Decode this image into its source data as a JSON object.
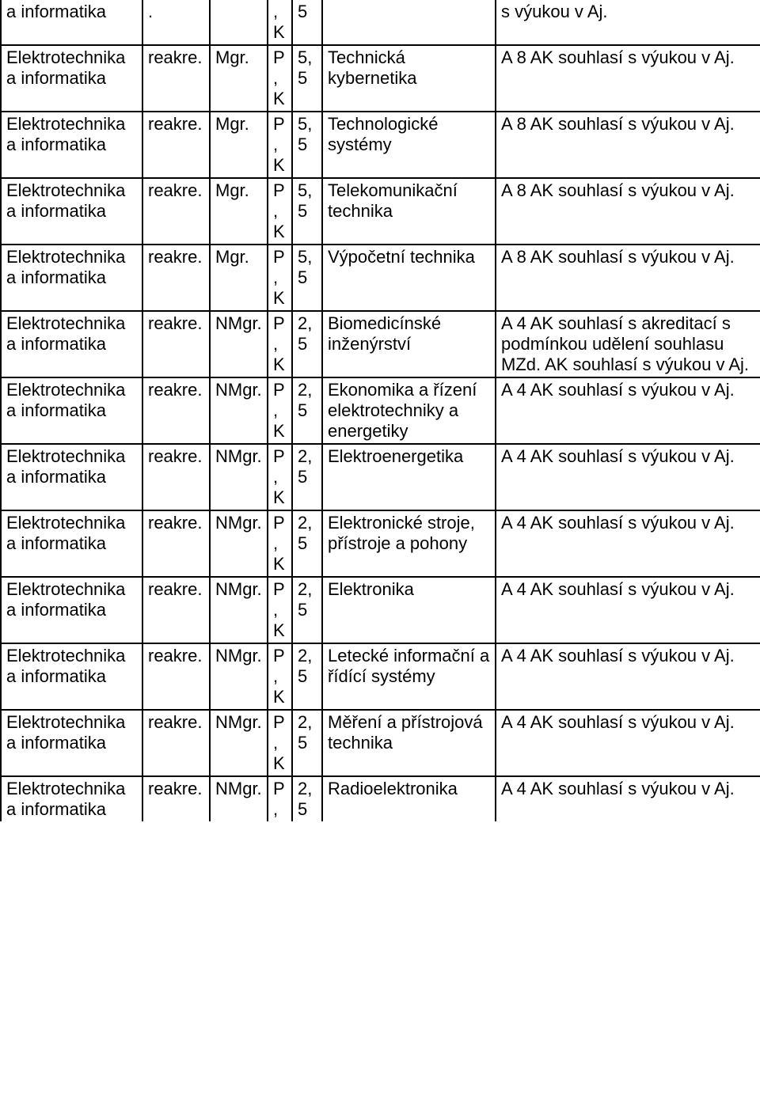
{
  "rows": [
    {
      "c1": "a informatika",
      "c2": ".",
      "c3": "",
      "c4": ", K",
      "c5": "5",
      "c6": "",
      "c7": "s výukou v Aj."
    },
    {
      "c1": "Elektrotechnika a informatika",
      "c2": "reakre.",
      "c3": "Mgr.",
      "c4": "P, K",
      "c5": "5,5",
      "c6": "Technická kybernetika",
      "c7": "A 8 AK souhlasí s výukou v Aj."
    },
    {
      "c1": "Elektrotechnika a informatika",
      "c2": "reakre.",
      "c3": "Mgr.",
      "c4": "P, K",
      "c5": "5,5",
      "c6": "Technologické systémy",
      "c7": "A 8 AK souhlasí s výukou v Aj."
    },
    {
      "c1": "Elektrotechnika a informatika",
      "c2": "reakre.",
      "c3": "Mgr.",
      "c4": "P, K",
      "c5": "5,5",
      "c6": "Telekomunikační technika",
      "c7": "A 8 AK souhlasí s výukou v Aj."
    },
    {
      "c1": "Elektrotechnika a informatika",
      "c2": "reakre.",
      "c3": "Mgr.",
      "c4": "P, K",
      "c5": "5,5",
      "c6": "Výpočetní technika",
      "c7": "A 8 AK souhlasí s výukou v Aj."
    },
    {
      "c1": "Elektrotechnika a informatika",
      "c2": "reakre.",
      "c3": "NMgr.",
      "c4": "P, K",
      "c5": "2,5",
      "c6": "Biomedicínské inženýrství",
      "c7": "A 4 AK souhlasí s akreditací s podmínkou udělení souhlasu MZd.  AK souhlasí s výukou v Aj."
    },
    {
      "c1": "Elektrotechnika a informatika",
      "c2": "reakre.",
      "c3": "NMgr.",
      "c4": "P, K",
      "c5": "2,5",
      "c6": "Ekonomika a řízení elektrotechniky a energetiky",
      "c7": "A 4 AK souhlasí s výukou v Aj."
    },
    {
      "c1": "Elektrotechnika a informatika",
      "c2": "reakre.",
      "c3": "NMgr.",
      "c4": "P, K",
      "c5": "2,5",
      "c6": "Elektroenergetika",
      "c7": "A 4 AK souhlasí s výukou v Aj."
    },
    {
      "c1": "Elektrotechnika a informatika",
      "c2": "reakre.",
      "c3": "NMgr.",
      "c4": "P, K",
      "c5": "2,5",
      "c6": "Elektronické stroje, přístroje a pohony",
      "c7": "A 4 AK souhlasí s výukou v Aj."
    },
    {
      "c1": "Elektrotechnika a informatika",
      "c2": "reakre.",
      "c3": "NMgr.",
      "c4": "P, K",
      "c5": "2,5",
      "c6": "Elektronika",
      "c7": "A 4 AK souhlasí s výukou v Aj."
    },
    {
      "c1": "Elektrotechnika a informatika",
      "c2": "reakre.",
      "c3": "NMgr.",
      "c4": "P, K",
      "c5": "2,5",
      "c6": "Letecké informační a řídící systémy",
      "c7": "A 4 AK souhlasí s výukou v Aj."
    },
    {
      "c1": "Elektrotechnika a informatika",
      "c2": "reakre.",
      "c3": "NMgr.",
      "c4": "P, K",
      "c5": "2,5",
      "c6": "Měření a přístrojová technika",
      "c7": "A 4 AK souhlasí s výukou v Aj."
    },
    {
      "c1": "Elektrotechnika a informatika",
      "c2": "reakre.",
      "c3": "NMgr.",
      "c4": "P,",
      "c5": "2,5",
      "c6": "Radioelektronika",
      "c7": "A 4 AK souhlasí s výukou v Aj."
    }
  ]
}
